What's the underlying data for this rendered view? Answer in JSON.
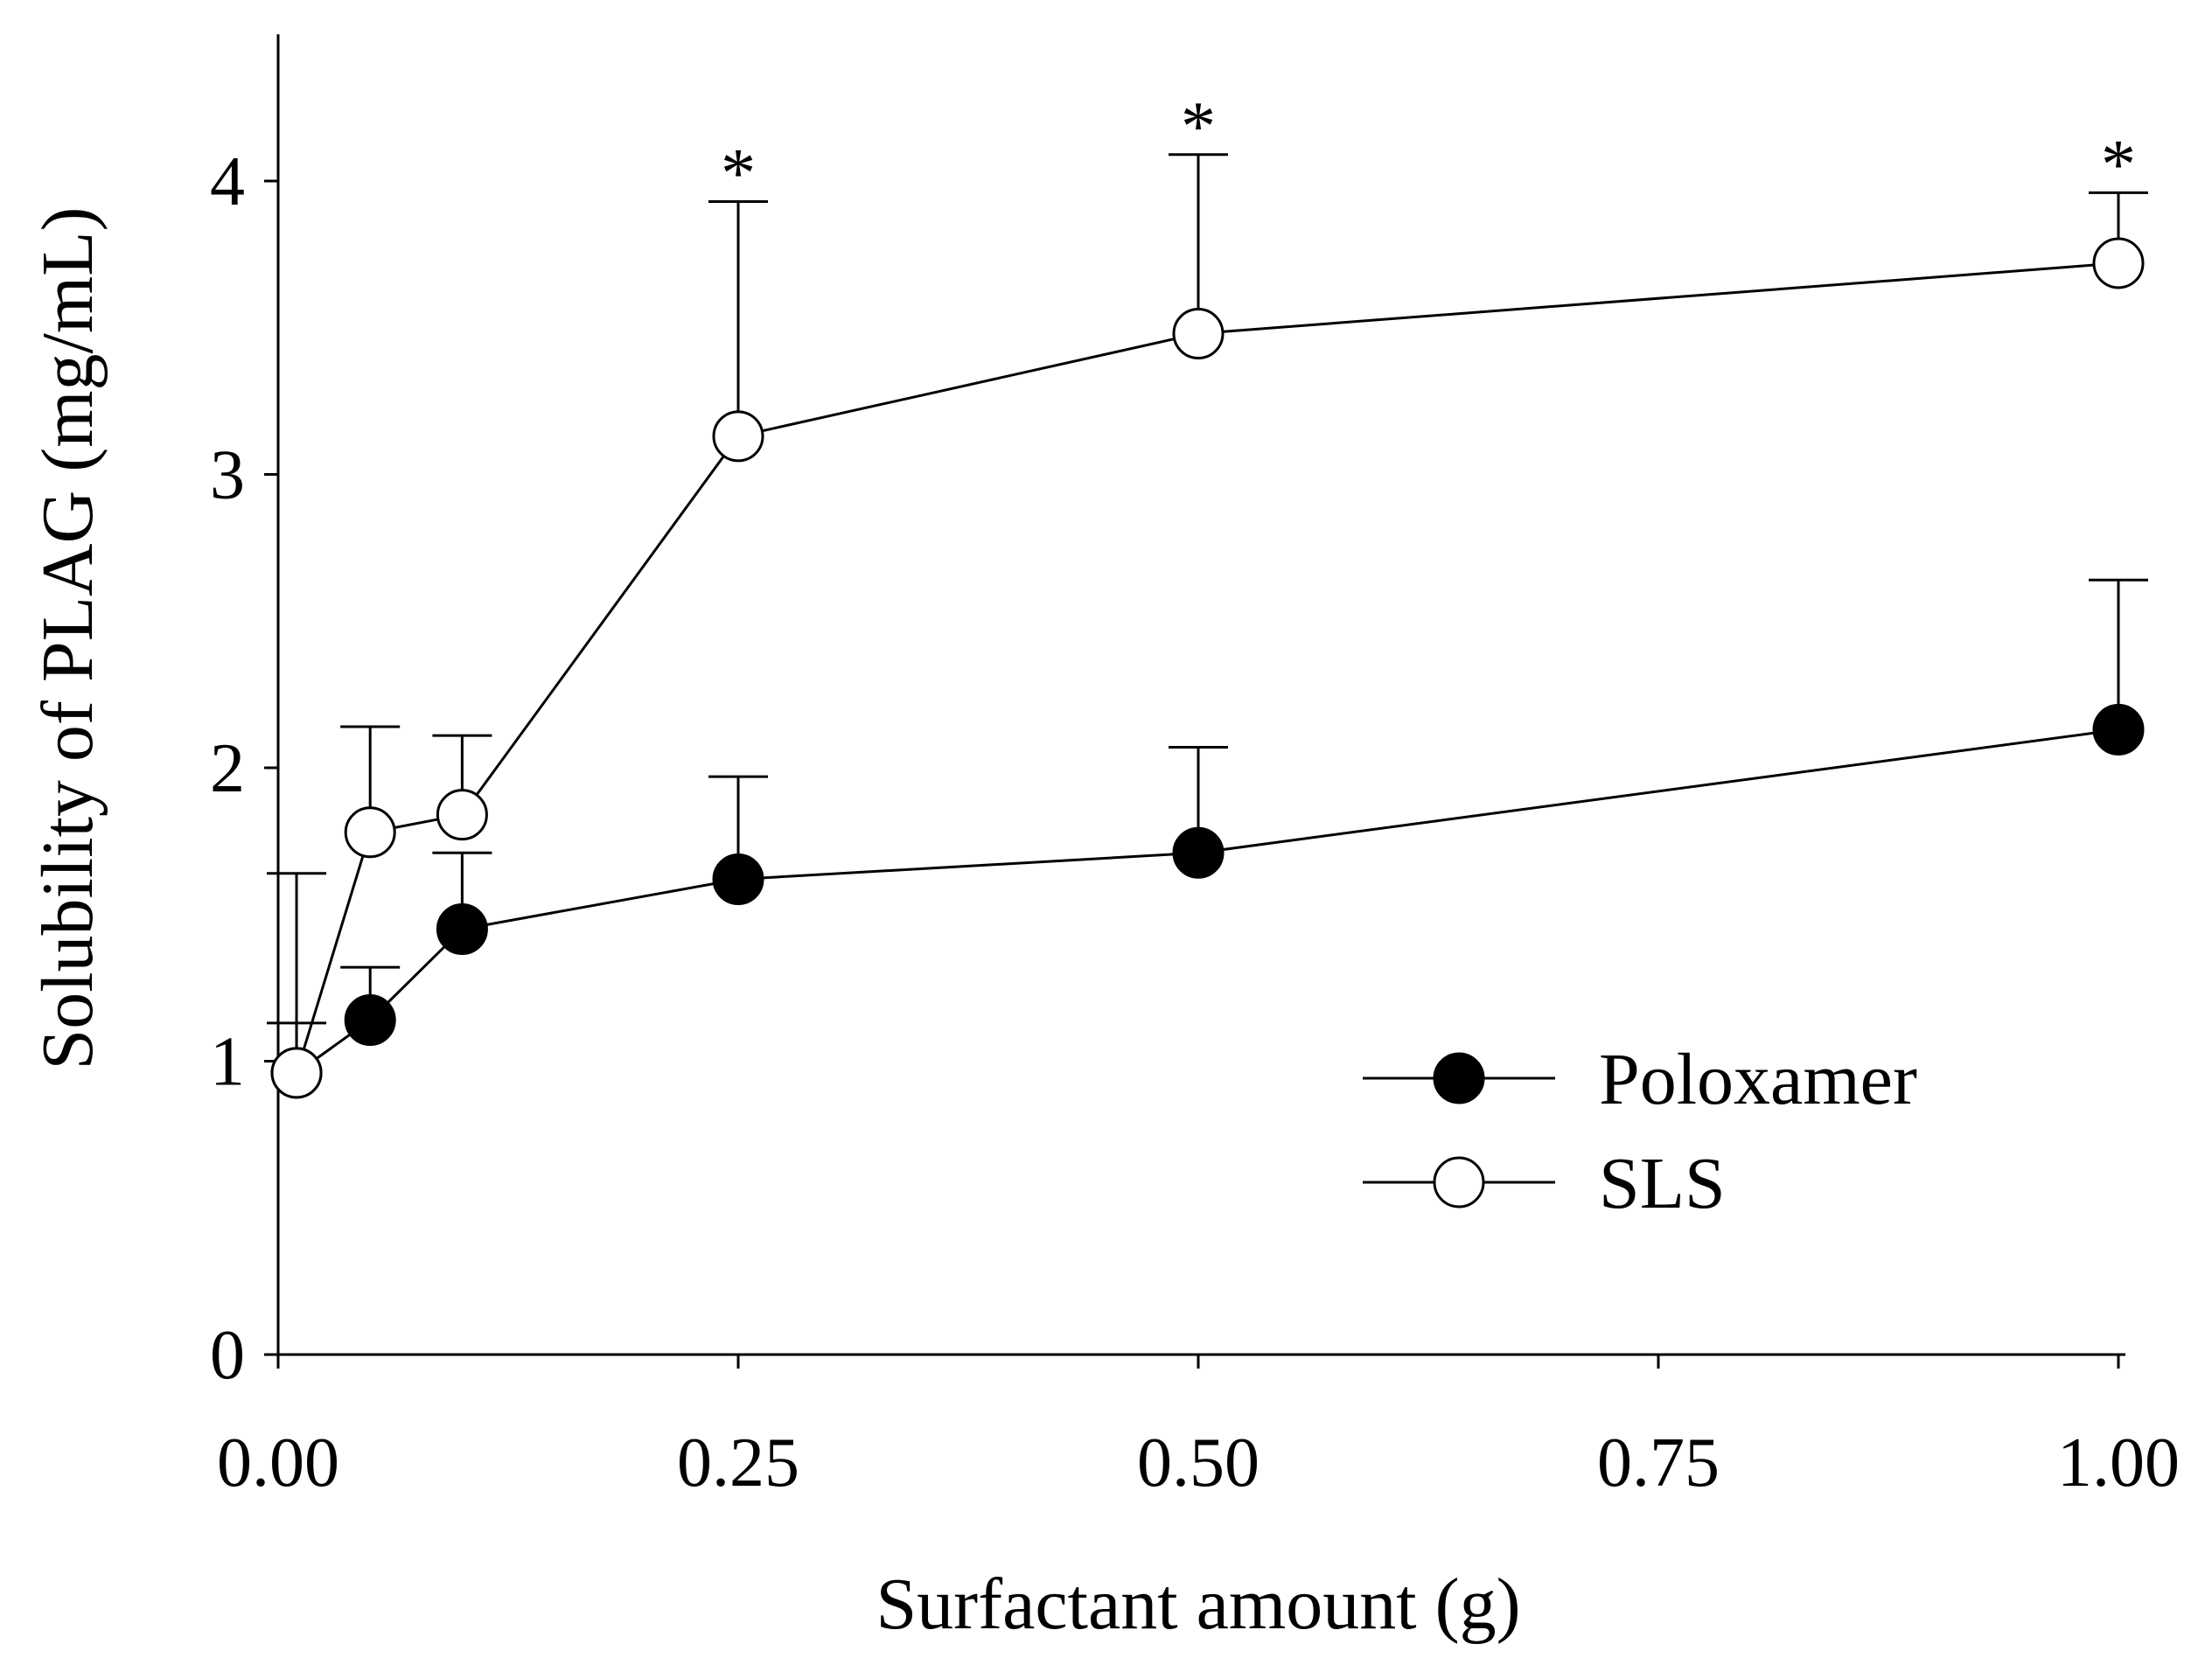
{
  "chart_data": {
    "type": "line",
    "xlabel": "Surfactant amount (g)",
    "ylabel": "Solubility of PLAG (mg/mL)",
    "xlim": [
      0,
      1
    ],
    "ylim": [
      0,
      4.5
    ],
    "xticks": [
      0,
      0.25,
      0.5,
      0.75,
      1.0
    ],
    "xtick_labels": [
      "0.00",
      "0.25",
      "0.50",
      "0.75",
      "1.00"
    ],
    "yticks": [
      0,
      1,
      2,
      3,
      4
    ],
    "ytick_labels": [
      "0",
      "1",
      "2",
      "3",
      "4"
    ],
    "legend_position": "lower-right",
    "series": [
      {
        "name": "Poloxamer",
        "marker": "filled-circle",
        "x": [
          0.01,
          0.05,
          0.1,
          0.25,
          0.5,
          1.0
        ],
        "values": [
          0.96,
          1.14,
          1.45,
          1.62,
          1.71,
          2.13
        ],
        "err_upper": [
          0.17,
          0.18,
          0.26,
          0.35,
          0.36,
          0.51
        ]
      },
      {
        "name": "SLS",
        "marker": "open-circle",
        "x": [
          0.01,
          0.05,
          0.1,
          0.25,
          0.5,
          1.0
        ],
        "values": [
          0.96,
          1.78,
          1.84,
          3.13,
          3.48,
          3.72
        ],
        "err_upper": [
          0.68,
          0.36,
          0.27,
          0.8,
          0.61,
          0.24
        ]
      }
    ],
    "significance": [
      {
        "x": 0.25,
        "label": "*"
      },
      {
        "x": 0.5,
        "label": "*"
      },
      {
        "x": 1.0,
        "label": "*"
      }
    ]
  }
}
